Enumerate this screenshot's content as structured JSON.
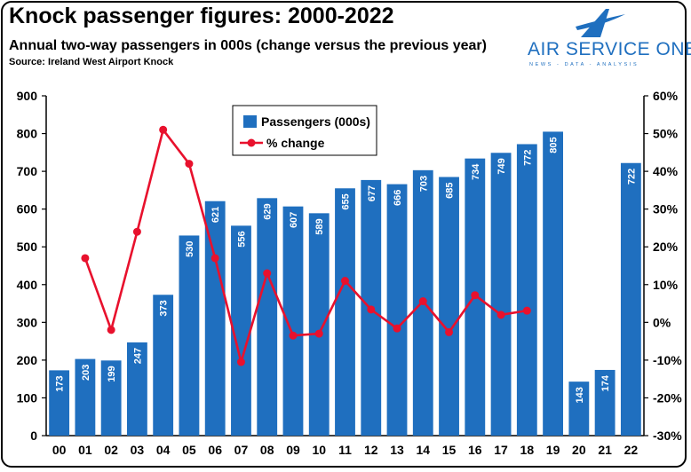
{
  "header": {
    "title": "Knock passenger figures: 2000-2022",
    "subtitle": "Annual two-way passengers in 000s (change versus the previous year)",
    "source": "Source: Ireland West Airport Knock"
  },
  "logo": {
    "name": "AIR SERVICE ONE",
    "tagline": "NEWS - DATA - ANALYSIS",
    "icon": "stylized-a-plane-icon"
  },
  "colors": {
    "bar": "#1f6fbf",
    "line": "#e8112d",
    "axis": "#000000"
  },
  "chart_data": {
    "type": "bar",
    "categories": [
      "00",
      "01",
      "02",
      "03",
      "04",
      "05",
      "06",
      "07",
      "08",
      "09",
      "10",
      "11",
      "12",
      "13",
      "14",
      "15",
      "16",
      "17",
      "18",
      "19",
      "20",
      "21",
      "22"
    ],
    "series": [
      {
        "name": "Passengers (000s)",
        "type": "bar",
        "axis": "left",
        "values": [
          173,
          203,
          199,
          247,
          373,
          530,
          621,
          556,
          629,
          607,
          589,
          655,
          677,
          666,
          703,
          685,
          734,
          749,
          772,
          805,
          143,
          174,
          722
        ]
      },
      {
        "name": "% change",
        "type": "line",
        "axis": "right",
        "values": [
          null,
          17,
          -2,
          24,
          51,
          42,
          17,
          -10.5,
          13,
          -3.5,
          -3,
          11,
          3.4,
          -1.6,
          5.6,
          -2.6,
          7.2,
          2,
          3.1,
          null,
          null,
          null,
          null
        ]
      }
    ],
    "yticks": [
      "0",
      "100",
      "200",
      "300",
      "400",
      "500",
      "600",
      "700",
      "800",
      "900"
    ],
    "y2ticks": [
      "-30%",
      "-20%",
      "-10%",
      "0%",
      "10%",
      "20%",
      "30%",
      "40%",
      "50%",
      "60%"
    ],
    "ylim": [
      0,
      900
    ],
    "y2lim": [
      -30,
      60
    ],
    "legend_position": "top-center",
    "grid": false
  }
}
